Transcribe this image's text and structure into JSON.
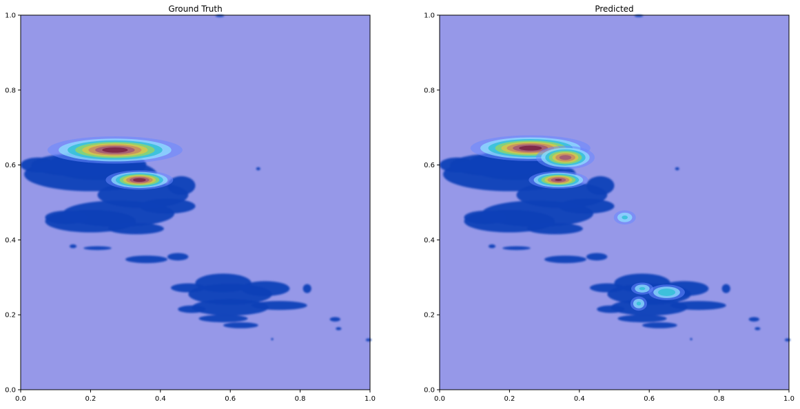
{
  "chart_data": [
    {
      "type": "heatmap",
      "title": "Ground Truth",
      "xlabel": "",
      "ylabel": "",
      "xlim": [
        0,
        1
      ],
      "ylim": [
        0,
        1
      ],
      "x_ticks": [
        "0.0",
        "0.2",
        "0.4",
        "0.6",
        "0.8",
        "1.0"
      ],
      "y_ticks": [
        "0.0",
        "0.2",
        "0.4",
        "0.6",
        "0.8",
        "1.0"
      ],
      "grid": false,
      "colormap": "jet",
      "background_color": "#9698e8",
      "scatter_color": "#1240b8",
      "hotspots": [
        {
          "x": 0.27,
          "y": 0.64,
          "sx": 0.09,
          "sy": 0.017,
          "intensity": 1.0
        },
        {
          "x": 0.34,
          "y": 0.56,
          "sx": 0.045,
          "sy": 0.012,
          "intensity": 1.0
        }
      ]
    },
    {
      "type": "heatmap",
      "title": "Predicted",
      "xlabel": "",
      "ylabel": "",
      "xlim": [
        0,
        1
      ],
      "ylim": [
        0,
        1
      ],
      "x_ticks": [
        "0.0",
        "0.2",
        "0.4",
        "0.6",
        "0.8",
        "1.0"
      ],
      "y_ticks": [
        "0.0",
        "0.2",
        "0.4",
        "0.6",
        "0.8",
        "1.0"
      ],
      "grid": false,
      "colormap": "jet",
      "background_color": "#9698e8",
      "scatter_color": "#1240b8",
      "hotspots": [
        {
          "x": 0.26,
          "y": 0.645,
          "sx": 0.08,
          "sy": 0.016,
          "intensity": 1.0
        },
        {
          "x": 0.36,
          "y": 0.62,
          "sx": 0.04,
          "sy": 0.015,
          "intensity": 0.9
        },
        {
          "x": 0.34,
          "y": 0.56,
          "sx": 0.04,
          "sy": 0.011,
          "intensity": 0.95
        },
        {
          "x": 0.65,
          "y": 0.26,
          "sx": 0.03,
          "sy": 0.012,
          "intensity": 0.45
        },
        {
          "x": 0.53,
          "y": 0.46,
          "sx": 0.02,
          "sy": 0.012,
          "intensity": 0.35
        },
        {
          "x": 0.57,
          "y": 0.23,
          "sx": 0.015,
          "sy": 0.012,
          "intensity": 0.35
        },
        {
          "x": 0.58,
          "y": 0.27,
          "sx": 0.02,
          "sy": 0.01,
          "intensity": 0.35
        }
      ]
    }
  ]
}
